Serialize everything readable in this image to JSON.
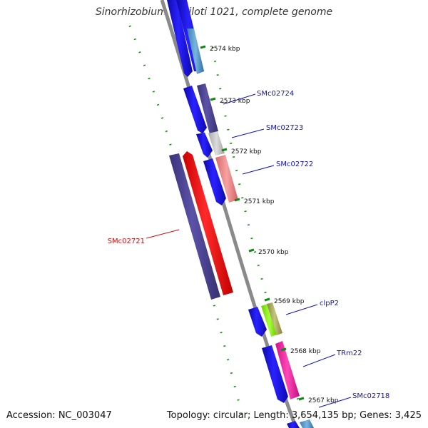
{
  "title": "Sinorhizobium meliloti 1021, complete genome",
  "footer": {
    "accession": "Accession: NC_003047",
    "summary": "Topology: circular; Length: 3,654,135 bp; Genes: 3,425"
  },
  "colors": {
    "backbone": "#8a8a8a",
    "ticks": "#118811",
    "cds_blue": "#1a10ee",
    "cds_purple": "#4f4494",
    "cds_red": "#ff1414",
    "label_blue": "#1111bb",
    "label_red": "#cc1111"
  },
  "scale_labels": [
    "2574 kbp",
    "2573 kbp",
    "2572 kbp",
    "2571 kbp",
    "2570 kbp",
    "2569 kbp",
    "2568 kbp",
    "2567 kbp"
  ],
  "gene_labels": [
    {
      "text": "SMc02724",
      "color": "#1111bb"
    },
    {
      "text": "SMc02723",
      "color": "#1111bb"
    },
    {
      "text": "SMc02722",
      "color": "#1111bb"
    },
    {
      "text": "SMc02721",
      "color": "#cc1111"
    },
    {
      "text": "clpP2",
      "color": "#1111bb"
    },
    {
      "text": "TRm22",
      "color": "#1111bb"
    },
    {
      "text": "SMc02718",
      "color": "#1111bb"
    }
  ]
}
